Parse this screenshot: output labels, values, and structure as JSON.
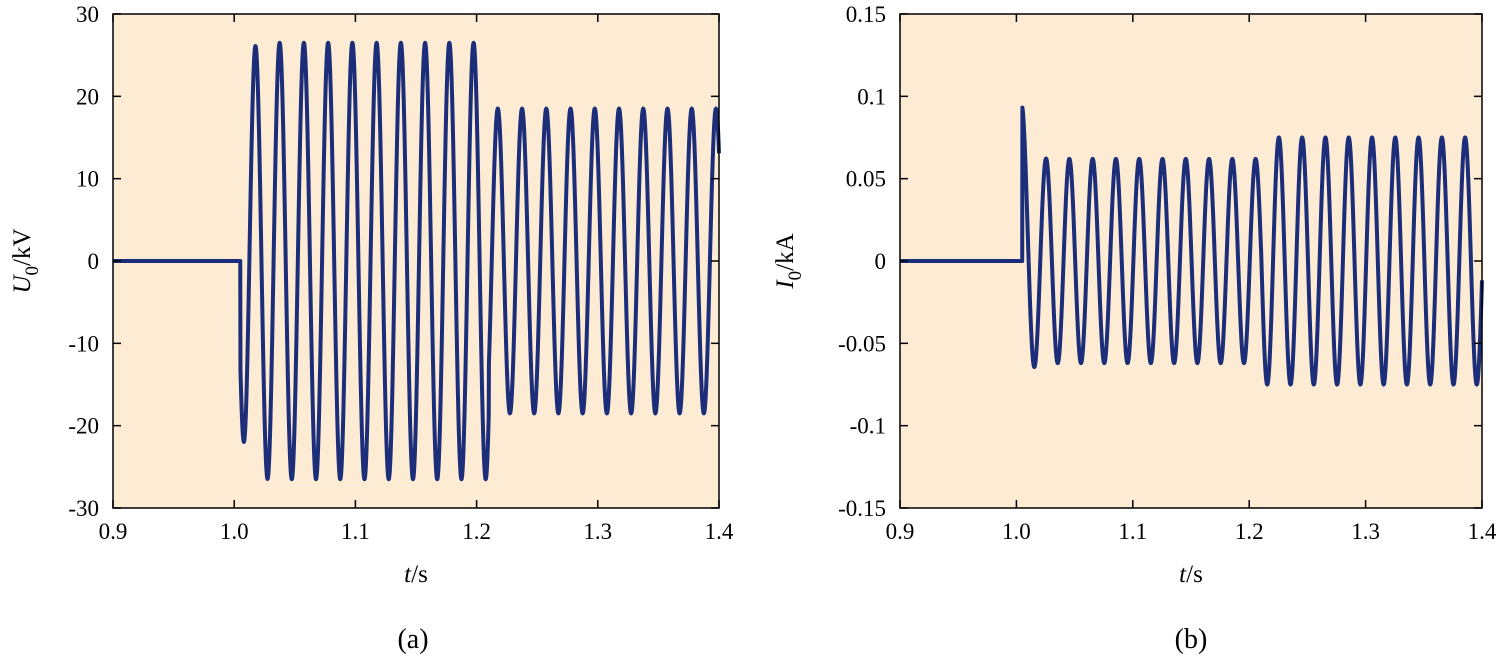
{
  "chart_data": [
    {
      "type": "line",
      "panel_label": "(a)",
      "ylabel_main": "U",
      "ylabel_sub": "0",
      "ylabel_unit": "/kV",
      "xlabel_main": "t",
      "xlabel_unit": "/s",
      "xlim": [
        0.9,
        1.4
      ],
      "ylim": [
        -30,
        30
      ],
      "xticks": [
        "0.9",
        "1.0",
        "1.1",
        "1.2",
        "1.3",
        "1.4"
      ],
      "yticks": [
        "-30",
        "-20",
        "-10",
        "0",
        "10",
        "20",
        "30"
      ],
      "grid": false,
      "background_color": "#fdebd3",
      "line_color": "#1c2e7a",
      "series": [
        {
          "segments": [
            {
              "t_start": 0.9,
              "t_end": 1.005,
              "kind": "constant",
              "value": 0
            },
            {
              "t_start": 1.005,
              "t_end": 1.21,
              "kind": "sine",
              "frequency_hz": 50,
              "amplitude": 26.5,
              "first_peak": -17.5,
              "first_peak_t": 1.0075
            },
            {
              "t_start": 1.21,
              "t_end": 1.4,
              "kind": "sine",
              "frequency_hz": 50,
              "amplitude": 18.5
            }
          ],
          "end_value": 6
        }
      ]
    },
    {
      "type": "line",
      "panel_label": "(b)",
      "ylabel_main": "I",
      "ylabel_sub": "0",
      "ylabel_unit": "/kA",
      "xlabel_main": "t",
      "xlabel_unit": "/s",
      "xlim": [
        0.9,
        1.4
      ],
      "ylim": [
        -0.15,
        0.15
      ],
      "xticks": [
        "0.9",
        "1.0",
        "1.1",
        "1.2",
        "1.3",
        "1.4"
      ],
      "yticks": [
        "-0.15",
        "-0.1",
        "-0.05",
        "0",
        "0.05",
        "0.1",
        "0.15"
      ],
      "grid": false,
      "background_color": "#fdebd3",
      "line_color": "#1c2e7a",
      "series": [
        {
          "segments": [
            {
              "t_start": 0.9,
              "t_end": 1.005,
              "kind": "constant",
              "value": 0
            },
            {
              "t_start": 1.005,
              "t_end": 1.21,
              "kind": "sine",
              "frequency_hz": 50,
              "amplitude": 0.062,
              "first_peak": 0.095,
              "first_peak_t": 1.0055
            },
            {
              "t_start": 1.21,
              "t_end": 1.4,
              "kind": "sine",
              "frequency_hz": 50,
              "amplitude": 0.075
            }
          ],
          "end_value": 0.02
        }
      ]
    }
  ]
}
